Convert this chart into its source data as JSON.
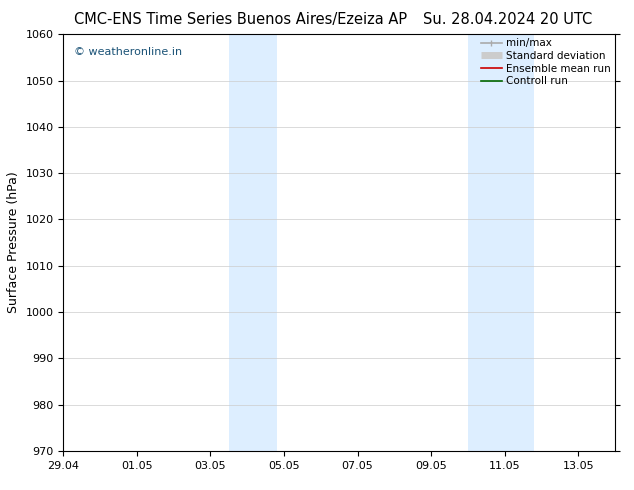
{
  "title_left": "CMC-ENS Time Series Buenos Aires/Ezeiza AP",
  "title_right": "Su. 28.04.2024 20 UTC",
  "ylabel": "Surface Pressure (hPa)",
  "ylim": [
    970,
    1060
  ],
  "yticks": [
    970,
    980,
    990,
    1000,
    1010,
    1020,
    1030,
    1040,
    1050,
    1060
  ],
  "xlim_start": 0,
  "xlim_end": 15,
  "xtick_positions": [
    0,
    2,
    4,
    6,
    8,
    10,
    12,
    14
  ],
  "xtick_labels": [
    "29.04",
    "01.05",
    "03.05",
    "05.05",
    "07.05",
    "09.05",
    "11.05",
    "13.05"
  ],
  "shaded_bands": [
    {
      "x_start": 4.5,
      "x_end": 5.8
    },
    {
      "x_start": 11.0,
      "x_end": 12.8
    }
  ],
  "shade_color": "#ddeeff",
  "watermark": "© weatheronline.in",
  "watermark_color": "#1a5276",
  "legend_entries": [
    {
      "label": "min/max",
      "color": "#aaaaaa",
      "lw": 1.2,
      "style": "line_with_caps"
    },
    {
      "label": "Standard deviation",
      "color": "#cccccc",
      "lw": 5,
      "style": "thick"
    },
    {
      "label": "Ensemble mean run",
      "color": "#cc0000",
      "lw": 1.2,
      "style": "line"
    },
    {
      "label": "Controll run",
      "color": "#006600",
      "lw": 1.2,
      "style": "line"
    }
  ],
  "background_color": "#ffffff",
  "grid_color": "#cccccc",
  "title_fontsize": 10.5,
  "tick_fontsize": 8,
  "ylabel_fontsize": 9,
  "legend_fontsize": 7.5
}
